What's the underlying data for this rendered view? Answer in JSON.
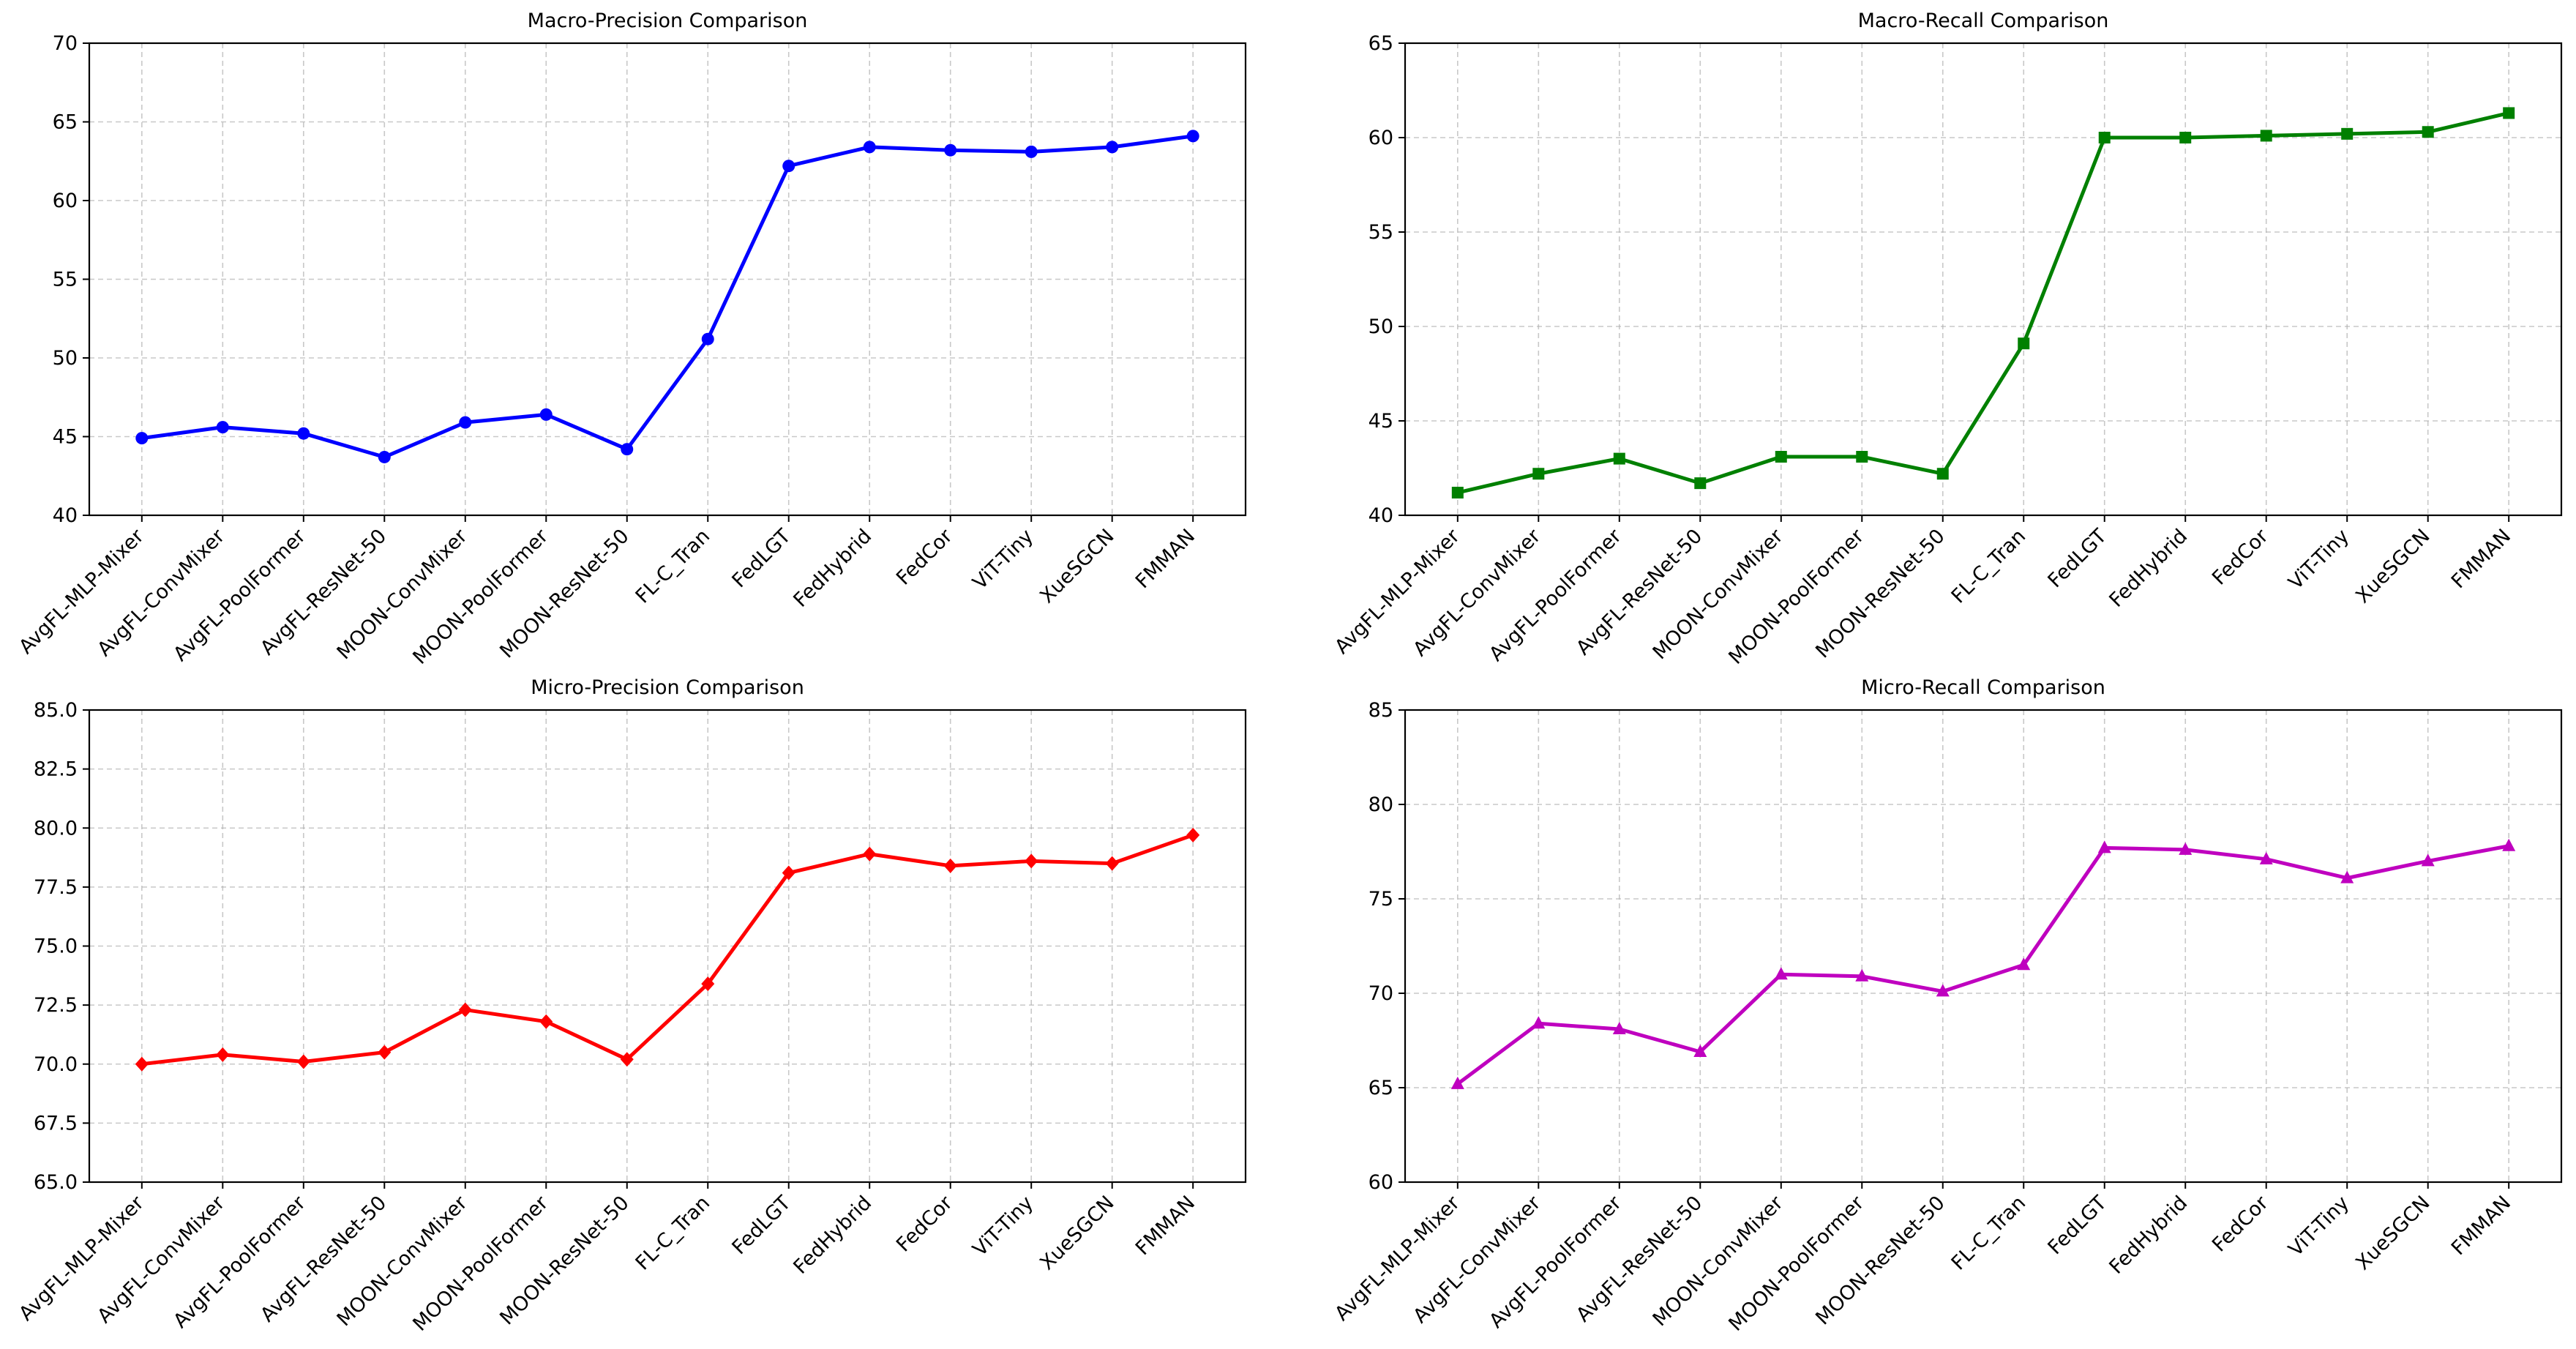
{
  "chart_data": [
    {
      "type": "line",
      "title": "Macro-Precision Comparison",
      "xlabel": "",
      "ylabel": "",
      "categories": [
        "AvgFL-MLP-Mixer",
        "AvgFL-ConvMixer",
        "AvgFL-PoolFormer",
        "AvgFL-ResNet-50",
        "MOON-ConvMixer",
        "MOON-PoolFormer",
        "MOON-ResNet-50",
        "FL-C_Tran",
        "FedLGT",
        "FedHybrid",
        "FedCor",
        "ViT-Tiny",
        "XueSGCN",
        "FMMAN"
      ],
      "values": [
        44.9,
        45.6,
        45.2,
        43.7,
        45.9,
        46.4,
        44.2,
        51.2,
        62.2,
        63.4,
        63.2,
        63.1,
        63.4,
        64.1
      ],
      "ylim": [
        40,
        70
      ],
      "yticks": [
        "40",
        "45",
        "50",
        "55",
        "60",
        "65",
        "70"
      ],
      "color": "#0000ff",
      "marker": "circle",
      "grid": true
    },
    {
      "type": "line",
      "title": "Macro-Recall Comparison",
      "xlabel": "",
      "ylabel": "",
      "categories": [
        "AvgFL-MLP-Mixer",
        "AvgFL-ConvMixer",
        "AvgFL-PoolFormer",
        "AvgFL-ResNet-50",
        "MOON-ConvMixer",
        "MOON-PoolFormer",
        "MOON-ResNet-50",
        "FL-C_Tran",
        "FedLGT",
        "FedHybrid",
        "FedCor",
        "ViT-Tiny",
        "XueSGCN",
        "FMMAN"
      ],
      "values": [
        41.2,
        42.2,
        43.0,
        41.7,
        43.1,
        43.1,
        42.2,
        49.1,
        60.0,
        60.0,
        60.1,
        60.2,
        60.3,
        61.3
      ],
      "ylim": [
        40,
        65
      ],
      "yticks": [
        "40",
        "45",
        "50",
        "55",
        "60",
        "65"
      ],
      "color": "#008000",
      "marker": "square",
      "grid": true
    },
    {
      "type": "line",
      "title": "Micro-Precision Comparison",
      "xlabel": "",
      "ylabel": "",
      "categories": [
        "AvgFL-MLP-Mixer",
        "AvgFL-ConvMixer",
        "AvgFL-PoolFormer",
        "AvgFL-ResNet-50",
        "MOON-ConvMixer",
        "MOON-PoolFormer",
        "MOON-ResNet-50",
        "FL-C_Tran",
        "FedLGT",
        "FedHybrid",
        "FedCor",
        "ViT-Tiny",
        "XueSGCN",
        "FMMAN"
      ],
      "values": [
        70.0,
        70.4,
        70.1,
        70.5,
        72.3,
        71.8,
        70.2,
        73.4,
        78.1,
        78.9,
        78.4,
        78.6,
        78.5,
        79.7
      ],
      "ylim": [
        65,
        85
      ],
      "yticks": [
        "65.0",
        "67.5",
        "70.0",
        "72.5",
        "75.0",
        "77.5",
        "80.0",
        "82.5",
        "85.0"
      ],
      "color": "#ff0000",
      "marker": "diamond",
      "grid": true
    },
    {
      "type": "line",
      "title": "Micro-Recall Comparison",
      "xlabel": "",
      "ylabel": "",
      "categories": [
        "AvgFL-MLP-Mixer",
        "AvgFL-ConvMixer",
        "AvgFL-PoolFormer",
        "AvgFL-ResNet-50",
        "MOON-ConvMixer",
        "MOON-PoolFormer",
        "MOON-ResNet-50",
        "FL-C_Tran",
        "FedLGT",
        "FedHybrid",
        "FedCor",
        "ViT-Tiny",
        "XueSGCN",
        "FMMAN"
      ],
      "values": [
        65.2,
        68.4,
        68.1,
        66.9,
        71.0,
        70.9,
        70.1,
        71.5,
        77.7,
        77.6,
        77.1,
        76.1,
        77.0,
        77.8
      ],
      "ylim": [
        60,
        85
      ],
      "yticks": [
        "60",
        "65",
        "70",
        "75",
        "80",
        "85"
      ],
      "color": "#bf00bf",
      "marker": "triangle",
      "grid": true
    }
  ]
}
